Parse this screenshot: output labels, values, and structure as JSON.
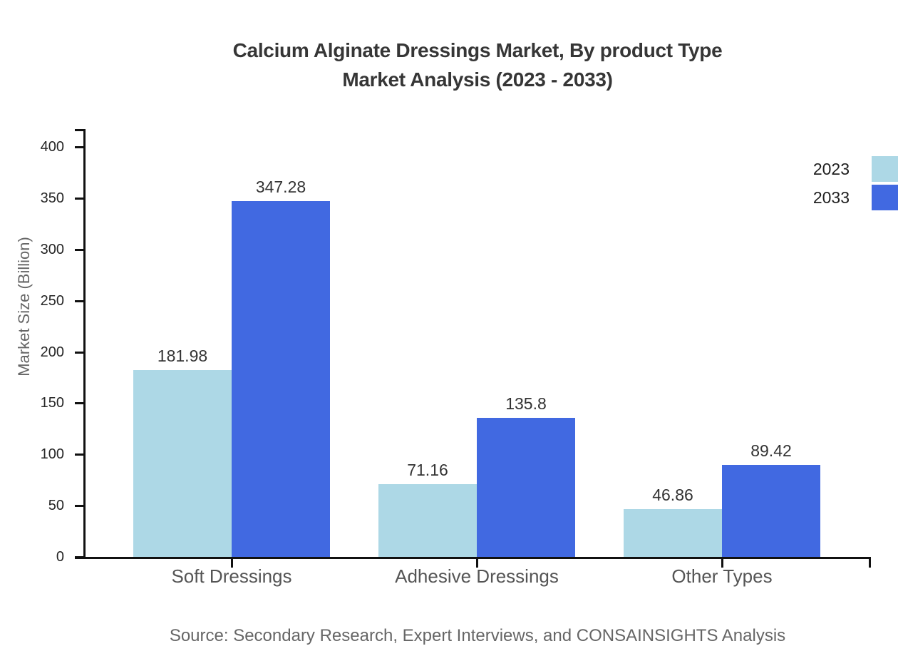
{
  "title": {
    "line1": "Calcium Alginate Dressings Market, By product Type",
    "line2": "Market Analysis (2023 - 2033)"
  },
  "source_note": "Source: Secondary Research, Expert Interviews, and CONSAINSIGHTS Analysis",
  "legend": {
    "position": "upper-right",
    "items": [
      {
        "label": "2023",
        "color": "#ADD8E6"
      },
      {
        "label": "2033",
        "color": "#4169E1"
      }
    ]
  },
  "chart_data": {
    "type": "bar",
    "title": "Calcium Alginate Dressings Market, By product Type Market Analysis (2023 - 2033)",
    "categories": [
      "Soft Dressings",
      "Adhesive Dressings",
      "Other Types"
    ],
    "series": [
      {
        "name": "2023",
        "color": "#ADD8E6",
        "values": [
          181.98,
          71.16,
          46.86
        ]
      },
      {
        "name": "2033",
        "color": "#4169E1",
        "values": [
          347.28,
          135.8,
          89.42
        ]
      }
    ],
    "xlabel": "",
    "ylabel": "Market Size (Billion)",
    "ylim": [
      0,
      400
    ],
    "yticks": [
      0,
      50,
      100,
      150,
      200,
      250,
      300,
      350,
      400
    ],
    "grid": false,
    "bar_value_labels": true,
    "legend_position": "upper-right"
  },
  "colors": {
    "background": "#ffffff",
    "axis": "#111111",
    "title_text": "#363636",
    "tick_label_text": "#262626",
    "category_text": "#555555",
    "muted_text": "#666666",
    "series_2023": "#ADD8E6",
    "series_2033": "#4169E1"
  }
}
